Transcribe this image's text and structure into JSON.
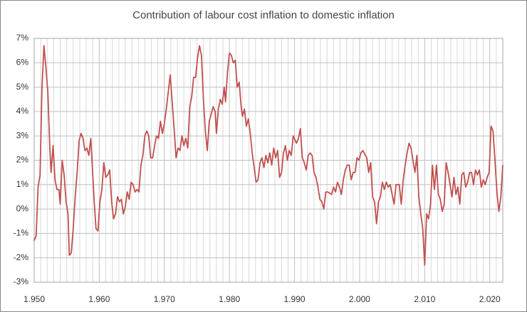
{
  "chart_data": {
    "type": "line",
    "title": "Contribution of labour cost inflation to domestic inflation",
    "xlim": [
      1950,
      2022
    ],
    "ylim": [
      -3,
      7
    ],
    "xticks": [
      {
        "value": 1950,
        "label": "1.950"
      },
      {
        "value": 1960,
        "label": "1.960"
      },
      {
        "value": 1970,
        "label": "1.970"
      },
      {
        "value": 1980,
        "label": "1.980"
      },
      {
        "value": 1990,
        "label": "1.990"
      },
      {
        "value": 2000,
        "label": "2.000"
      },
      {
        "value": 2010,
        "label": "2.010"
      },
      {
        "value": 2020,
        "label": "2.020"
      }
    ],
    "xminor": [
      1951,
      1952,
      1953,
      1954,
      1955,
      1956,
      1957,
      1958,
      1959,
      1961,
      1962,
      1963,
      1964,
      1965,
      1966,
      1967,
      1968,
      1969,
      1971,
      1972,
      1973,
      1974,
      1975,
      1976,
      1977,
      1978,
      1979,
      1981,
      1982,
      1983,
      1984,
      1985,
      1986,
      1987,
      1988,
      1989,
      1991,
      1992,
      1993,
      1994,
      1995,
      1996,
      1997,
      1998,
      1999,
      2001,
      2002,
      2003,
      2004,
      2005,
      2006,
      2007,
      2008,
      2009,
      2011,
      2012,
      2013,
      2014,
      2015,
      2016,
      2017,
      2018,
      2019,
      2021
    ],
    "yticks": [
      {
        "value": -3,
        "label": "-3%"
      },
      {
        "value": -2,
        "label": "-2%"
      },
      {
        "value": -1,
        "label": "-1%"
      },
      {
        "value": 0,
        "label": "0%"
      },
      {
        "value": 1,
        "label": "1%"
      },
      {
        "value": 2,
        "label": "2%"
      },
      {
        "value": 3,
        "label": "3%"
      },
      {
        "value": 4,
        "label": "4%"
      },
      {
        "value": 5,
        "label": "5%"
      },
      {
        "value": 6,
        "label": "6%"
      },
      {
        "value": 7,
        "label": "7%"
      }
    ],
    "grid": true,
    "x": [
      1950.0,
      1950.3,
      1950.6,
      1950.9,
      1951.2,
      1951.5,
      1951.8,
      1952.1,
      1952.4,
      1952.6,
      1952.9,
      1953.2,
      1953.5,
      1953.8,
      1954.0,
      1954.3,
      1954.6,
      1954.9,
      1955.2,
      1955.4,
      1955.7,
      1956.0,
      1956.3,
      1956.6,
      1956.9,
      1957.2,
      1957.5,
      1957.8,
      1958.1,
      1958.4,
      1958.7,
      1958.9,
      1959.2,
      1959.5,
      1959.8,
      1960.1,
      1960.4,
      1960.7,
      1961.0,
      1961.3,
      1961.6,
      1961.9,
      1962.2,
      1962.5,
      1962.8,
      1963.1,
      1963.4,
      1963.7,
      1964.0,
      1964.3,
      1964.6,
      1964.9,
      1965.2,
      1965.5,
      1965.8,
      1966.1,
      1966.4,
      1966.7,
      1967.0,
      1967.3,
      1967.6,
      1967.9,
      1968.2,
      1968.5,
      1968.8,
      1969.1,
      1969.4,
      1969.7,
      1970.0,
      1970.3,
      1970.6,
      1970.9,
      1971.2,
      1971.5,
      1971.8,
      1972.1,
      1972.4,
      1972.7,
      1973.0,
      1973.3,
      1973.6,
      1973.9,
      1974.2,
      1974.5,
      1974.8,
      1975.1,
      1975.4,
      1975.7,
      1976.0,
      1976.3,
      1976.6,
      1976.9,
      1977.2,
      1977.5,
      1977.8,
      1978.0,
      1978.3,
      1978.6,
      1978.9,
      1979.2,
      1979.4,
      1979.7,
      1980.0,
      1980.3,
      1980.6,
      1980.9,
      1981.2,
      1981.5,
      1981.8,
      1982.0,
      1982.3,
      1982.6,
      1982.9,
      1983.2,
      1983.5,
      1983.8,
      1984.1,
      1984.4,
      1984.7,
      1985.0,
      1985.3,
      1985.6,
      1985.9,
      1986.2,
      1986.5,
      1986.8,
      1987.1,
      1987.4,
      1987.7,
      1988.0,
      1988.3,
      1988.6,
      1988.9,
      1989.2,
      1989.5,
      1989.8,
      1990.3,
      1990.6,
      1990.9,
      1991.2,
      1991.5,
      1991.8,
      1992.1,
      1992.4,
      1992.7,
      1993.0,
      1993.3,
      1993.6,
      1993.9,
      1994.2,
      1994.5,
      1994.8,
      1995.1,
      1995.7,
      1996.0,
      1996.3,
      1996.6,
      1996.9,
      1997.2,
      1997.5,
      1997.8,
      1998.1,
      1998.4,
      1998.7,
      1999.0,
      1999.3,
      1999.6,
      1999.9,
      2000.2,
      2000.5,
      2001.1,
      2001.4,
      2001.7,
      2002.0,
      2002.3,
      2002.6,
      2002.9,
      2003.2,
      2003.5,
      2003.8,
      2004.1,
      2004.4,
      2004.7,
      2005.0,
      2005.3,
      2005.6,
      2006.1,
      2006.4,
      2006.7,
      2007.0,
      2007.3,
      2007.6,
      2007.9,
      2008.2,
      2008.5,
      2008.8,
      2009.1,
      2009.4,
      2009.7,
      2010.0,
      2010.3,
      2010.6,
      2010.9,
      2011.2,
      2011.5,
      2011.8,
      2012.1,
      2012.4,
      2012.7,
      2013.0,
      2013.3,
      2013.6,
      2013.9,
      2014.2,
      2014.5,
      2014.8,
      2015.1,
      2015.4,
      2015.7,
      2016.0,
      2016.3,
      2016.6,
      2016.9,
      2017.2,
      2017.5,
      2017.8,
      2018.1,
      2018.4,
      2018.7,
      2019.0,
      2019.3,
      2019.6,
      2019.9,
      2020.2,
      2020.5,
      2020.8,
      2021.1,
      2021.4,
      2021.7,
      2022.0
    ],
    "series": [
      {
        "color": "#c0504d",
        "values": [
          -1.3,
          -1.1,
          0.9,
          1.4,
          5.0,
          6.7,
          5.8,
          4.8,
          2.5,
          1.5,
          2.6,
          1.2,
          0.8,
          0.8,
          0.2,
          2.0,
          1.4,
          0.3,
          -0.2,
          -1.9,
          -1.8,
          -0.8,
          0.5,
          1.5,
          2.8,
          3.1,
          2.9,
          2.4,
          2.5,
          2.2,
          2.9,
          1.9,
          0.4,
          -0.8,
          -0.9,
          0.3,
          0.8,
          1.9,
          1.3,
          1.4,
          1.6,
          0.3,
          -0.4,
          -0.2,
          0.5,
          0.3,
          0.4,
          -0.2,
          0.1,
          0.7,
          0.4,
          1.1,
          1.0,
          0.7,
          0.8,
          0.7,
          1.8,
          2.2,
          3.0,
          3.2,
          3.0,
          2.1,
          2.1,
          2.6,
          3.0,
          2.9,
          3.6,
          3.1,
          3.5,
          4.1,
          4.8,
          5.5,
          4.4,
          3.3,
          2.1,
          2.5,
          2.4,
          3.0,
          2.6,
          2.9,
          2.5,
          4.2,
          4.6,
          5.4,
          5.4,
          6.2,
          6.7,
          6.3,
          4.5,
          3.2,
          2.4,
          3.6,
          3.9,
          4.2,
          4.0,
          3.1,
          4.1,
          4.5,
          4.3,
          5.0,
          4.4,
          5.6,
          6.4,
          6.3,
          6.0,
          6.1,
          5.0,
          5.2,
          4.2,
          3.8,
          4.1,
          3.4,
          3.7,
          3.1,
          2.3,
          1.7,
          1.1,
          1.2,
          1.9,
          2.1,
          1.7,
          2.2,
          1.9,
          2.3,
          1.8,
          2.5,
          2.1,
          2.4,
          1.3,
          1.5,
          2.3,
          2.6,
          2.0,
          2.4,
          2.2,
          3.0,
          2.7,
          2.9,
          3.3,
          2.1,
          1.9,
          1.6,
          2.2,
          2.3,
          2.2,
          1.5,
          1.3,
          0.9,
          0.4,
          0.3,
          0.0,
          0.7,
          0.7,
          0.6,
          0.9,
          0.7,
          1.1,
          0.9,
          0.6,
          1.2,
          1.6,
          1.8,
          1.8,
          1.2,
          1.5,
          1.5,
          2.1,
          2.0,
          2.3,
          2.4,
          2.1,
          1.5,
          1.9,
          0.5,
          0.3,
          -0.6,
          0.3,
          0.5,
          1.1,
          0.8,
          1.1,
          0.9,
          1.0,
          0.6,
          0.2,
          1.0,
          1.0,
          0.2,
          1.2,
          1.8,
          2.3,
          2.7,
          2.5,
          2.0,
          1.5,
          2.2,
          0.5,
          -0.2,
          -0.8,
          -2.3,
          -0.2,
          -0.4,
          0.2,
          1.8,
          0.8,
          1.8,
          0.6,
          0.4,
          -0.1,
          0.2,
          1.9,
          1.5,
          1.0,
          0.5,
          1.3,
          0.6,
          0.9,
          0.2,
          1.4,
          1.5,
          0.9,
          1.1,
          1.5,
          1.5,
          1.0,
          1.6,
          1.4,
          1.6,
          0.9,
          1.2,
          1.0,
          1.3,
          1.5,
          3.4,
          3.2,
          2.0,
          0.7,
          -0.1,
          0.5,
          1.8
        ]
      }
    ]
  }
}
